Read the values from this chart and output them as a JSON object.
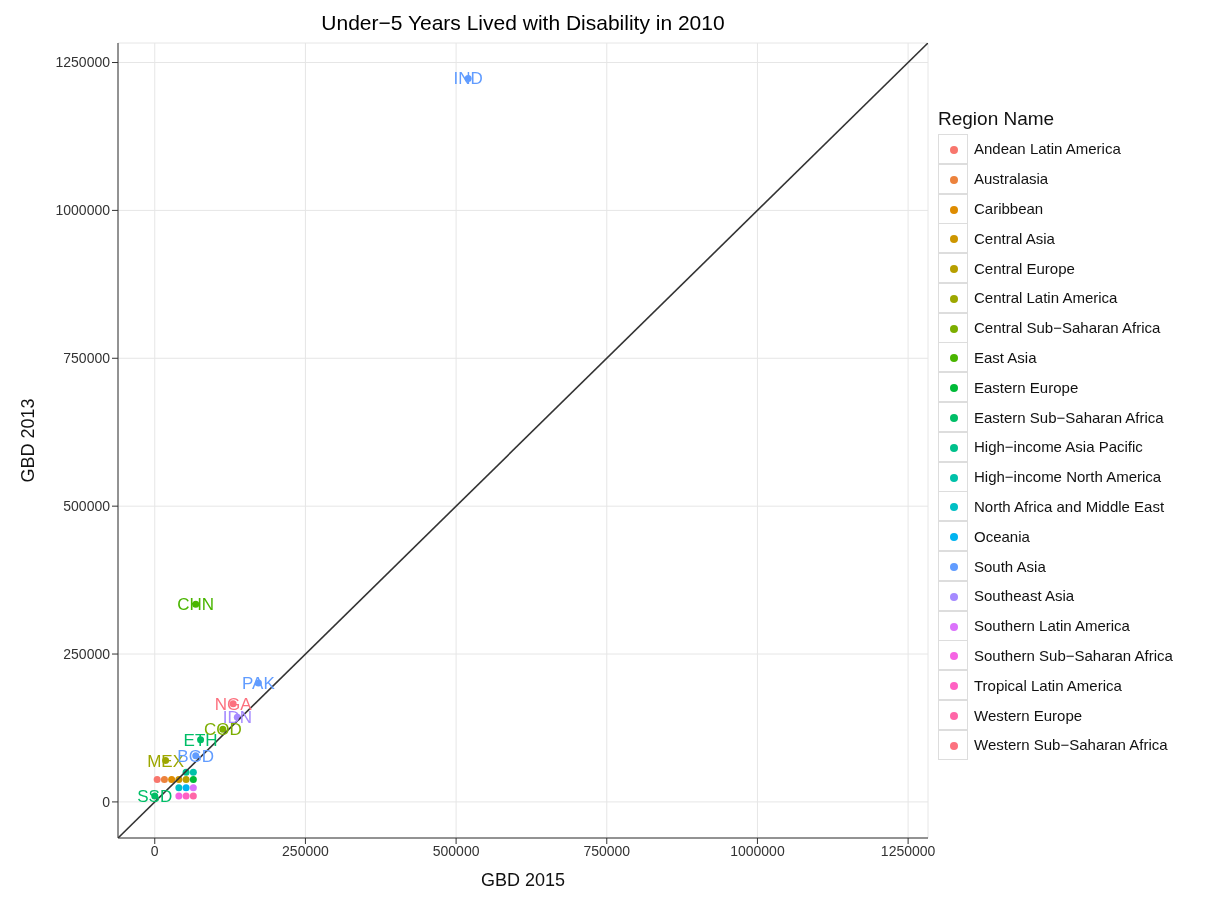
{
  "chart_data": {
    "type": "scatter",
    "title": "Under−5 Years Lived with Disability in 2010",
    "xlabel": "GBD 2015",
    "ylabel": "GBD 2013",
    "legend_title": "Region Name",
    "xlim": [
      -61000,
      1283000
    ],
    "ylim": [
      -61000,
      1283000
    ],
    "xticks": [
      0,
      250000,
      500000,
      750000,
      1000000,
      1250000
    ],
    "yticks": [
      0,
      250000,
      500000,
      750000,
      1000000,
      1250000
    ],
    "grid": true,
    "legend": "right",
    "marker": "circle",
    "series": [
      {
        "name": "Andean Latin America",
        "color": "#f8766d",
        "x": [
          4000
        ],
        "values": [
          38000
        ]
      },
      {
        "name": "Australasia",
        "color": "#ec823c",
        "x": [
          16000
        ],
        "values": [
          38000
        ]
      },
      {
        "name": "Caribbean",
        "color": "#de8c00",
        "x": [
          28000
        ],
        "values": [
          38000
        ]
      },
      {
        "name": "Central Asia",
        "color": "#cd9600",
        "x": [
          40000
        ],
        "values": [
          38000
        ]
      },
      {
        "name": "Central Europe",
        "color": "#b79f00",
        "x": [
          52000
        ],
        "values": [
          38000
        ]
      },
      {
        "name": "Central Latin America",
        "color": "#9da700",
        "x": [
          18000
        ],
        "values": [
          70000
        ],
        "value_labels": [
          "MEX"
        ]
      },
      {
        "name": "Central Sub−Saharan Africa",
        "color": "#7cae00",
        "x": [
          113000
        ],
        "values": [
          123000
        ],
        "value_labels": [
          "COD"
        ]
      },
      {
        "name": "East Asia",
        "color": "#49b500",
        "x": [
          68000
        ],
        "values": [
          334000
        ],
        "value_labels": [
          "CHN"
        ]
      },
      {
        "name": "Eastern Europe",
        "color": "#00ba38",
        "x": [
          64000
        ],
        "values": [
          38000
        ]
      },
      {
        "name": "Eastern Sub−Saharan Africa",
        "color": "#00be67",
        "x": [
          76000,
          0
        ],
        "values": [
          105000,
          10000
        ],
        "value_labels": [
          "ETH",
          "SSD"
        ]
      },
      {
        "name": "High−income Asia Pacific",
        "color": "#00c08b",
        "x": [
          52000
        ],
        "values": [
          50000
        ]
      },
      {
        "name": "High−income North America",
        "color": "#00c1a9",
        "x": [
          64000
        ],
        "values": [
          50000
        ]
      },
      {
        "name": "North Africa and Middle East",
        "color": "#00bfc4",
        "x": [
          40000
        ],
        "values": [
          24000
        ]
      },
      {
        "name": "Oceania",
        "color": "#00b4f0",
        "x": [
          52000
        ],
        "values": [
          24000
        ]
      },
      {
        "name": "South Asia",
        "color": "#619cff",
        "x": [
          520000,
          172000,
          68000
        ],
        "values": [
          1223000,
          201000,
          78000
        ],
        "value_labels": [
          "IND",
          "PAK",
          "BGD"
        ]
      },
      {
        "name": "Southeast Asia",
        "color": "#a58aff",
        "x": [
          137000
        ],
        "values": [
          143000
        ],
        "value_labels": [
          "IDN"
        ]
      },
      {
        "name": "Southern Latin America",
        "color": "#db72fb",
        "x": [
          64000
        ],
        "values": [
          24000
        ]
      },
      {
        "name": "Southern Sub−Saharan Africa",
        "color": "#f564e3",
        "x": [
          40000
        ],
        "values": [
          10000
        ]
      },
      {
        "name": "Tropical Latin America",
        "color": "#ff61c3",
        "x": [
          52000
        ],
        "values": [
          10000
        ]
      },
      {
        "name": "Western Europe",
        "color": "#ff66a8",
        "x": [
          64000
        ],
        "values": [
          10000
        ]
      },
      {
        "name": "Western Sub−Saharan Africa",
        "color": "#fc717f",
        "x": [
          130000
        ],
        "values": [
          166000
        ],
        "value_labels": [
          "NGA"
        ]
      },
      {
        "type": "line",
        "color": "#333333",
        "marker": "none",
        "x": [
          -61000,
          1283000
        ],
        "values": [
          -61000,
          1283000
        ]
      }
    ]
  }
}
